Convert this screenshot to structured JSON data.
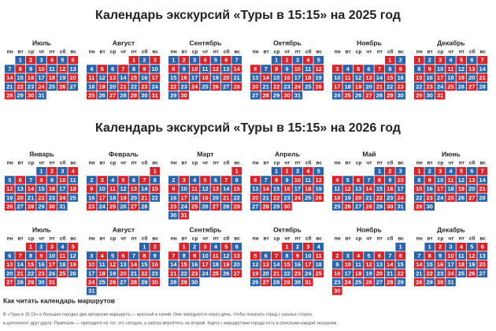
{
  "palette": {
    "red": "#d8232a",
    "blue": "#2b62ac"
  },
  "weekdays": [
    "пн",
    "вт",
    "ср",
    "чт",
    "пт",
    "сб",
    "вс"
  ],
  "sections": [
    {
      "title": "Календарь экскурсий «Туры в 15:15» на 2025 год",
      "months": [
        {
          "name": "Июль",
          "first_color": "blue",
          "days": [
            null,
            1,
            2,
            3,
            4,
            5,
            6,
            7,
            8,
            9,
            10,
            11,
            12,
            13,
            14,
            15,
            16,
            17,
            18,
            19,
            20,
            21,
            22,
            23,
            24,
            25,
            26,
            27,
            28,
            29,
            30,
            31
          ]
        },
        {
          "name": "Август",
          "first_color": "red",
          "days": [
            null,
            null,
            null,
            null,
            1,
            2,
            3,
            4,
            5,
            6,
            7,
            8,
            9,
            10,
            11,
            12,
            13,
            14,
            15,
            16,
            17,
            18,
            19,
            20,
            21,
            22,
            23,
            24,
            25,
            26,
            27,
            28,
            29,
            30,
            31
          ]
        },
        {
          "name": "Сентябрь",
          "first_color": "blue",
          "days": [
            1,
            2,
            3,
            4,
            5,
            6,
            7,
            8,
            9,
            10,
            11,
            12,
            13,
            14,
            15,
            16,
            17,
            18,
            19,
            20,
            21,
            22,
            23,
            24,
            25,
            26,
            27,
            28,
            29,
            30
          ]
        },
        {
          "name": "Октябрь",
          "first_color": "blue",
          "days": [
            null,
            null,
            1,
            2,
            3,
            4,
            5,
            6,
            7,
            8,
            9,
            10,
            11,
            12,
            13,
            14,
            15,
            16,
            17,
            18,
            19,
            20,
            21,
            22,
            23,
            24,
            25,
            26,
            27,
            28,
            29,
            30,
            31
          ]
        },
        {
          "name": "Ноябрь",
          "first_color": "red",
          "days": [
            null,
            null,
            null,
            null,
            null,
            1,
            2,
            3,
            4,
            5,
            6,
            7,
            8,
            9,
            10,
            11,
            12,
            13,
            14,
            15,
            16,
            17,
            18,
            19,
            20,
            21,
            22,
            23,
            24,
            25,
            26,
            27,
            28,
            29,
            30
          ]
        },
        {
          "name": "Декабрь",
          "first_color": "red",
          "days": [
            1,
            2,
            3,
            4,
            5,
            6,
            7,
            8,
            9,
            10,
            11,
            12,
            13,
            14,
            15,
            16,
            17,
            18,
            19,
            20,
            21,
            22,
            23,
            24,
            25,
            26,
            27,
            28,
            29,
            30,
            31
          ]
        }
      ]
    },
    {
      "title": "Календарь экскурсий «Туры в 15:15» на 2026 год",
      "months": [
        {
          "name": "Январь",
          "first_color": "blue",
          "days": [
            null,
            null,
            null,
            1,
            2,
            3,
            4,
            5,
            6,
            7,
            8,
            9,
            10,
            11,
            12,
            13,
            14,
            15,
            16,
            17,
            18,
            19,
            20,
            21,
            22,
            23,
            24,
            25,
            26,
            27,
            28,
            29,
            30,
            31
          ]
        },
        {
          "name": "Февраль",
          "first_color": "red",
          "days": [
            null,
            null,
            null,
            null,
            null,
            null,
            1,
            2,
            3,
            4,
            5,
            6,
            7,
            8,
            9,
            10,
            11,
            12,
            13,
            14,
            15,
            16,
            17,
            18,
            19,
            20,
            21,
            22,
            23,
            24,
            25,
            26,
            27,
            28
          ]
        },
        {
          "name": "Март",
          "first_color": "red",
          "days": [
            null,
            null,
            null,
            null,
            null,
            null,
            1,
            2,
            3,
            4,
            5,
            6,
            7,
            8,
            9,
            10,
            11,
            12,
            13,
            14,
            15,
            16,
            17,
            18,
            19,
            20,
            21,
            22,
            23,
            24,
            25,
            26,
            27,
            28,
            29,
            30,
            31
          ]
        },
        {
          "name": "Апрель",
          "first_color": "blue",
          "days": [
            null,
            null,
            1,
            2,
            3,
            4,
            5,
            6,
            7,
            8,
            9,
            10,
            11,
            12,
            13,
            14,
            15,
            16,
            17,
            18,
            19,
            20,
            21,
            22,
            23,
            24,
            25,
            26,
            27,
            28,
            29,
            30
          ]
        },
        {
          "name": "Май",
          "first_color": "blue",
          "days": [
            null,
            null,
            null,
            null,
            1,
            2,
            3,
            4,
            5,
            6,
            7,
            8,
            9,
            10,
            11,
            12,
            13,
            14,
            15,
            16,
            17,
            18,
            19,
            20,
            21,
            22,
            23,
            24,
            25,
            26,
            27,
            28,
            29,
            30,
            31
          ]
        },
        {
          "name": "Июнь",
          "first_color": "red",
          "days": [
            1,
            2,
            3,
            4,
            5,
            6,
            7,
            8,
            9,
            10,
            11,
            12,
            13,
            14,
            15,
            16,
            17,
            18,
            19,
            20,
            21,
            22,
            23,
            24,
            25,
            26,
            27,
            28,
            29,
            30
          ]
        },
        {
          "name": "Июль",
          "first_color": "red",
          "days": [
            null,
            null,
            1,
            2,
            3,
            4,
            5,
            6,
            7,
            8,
            9,
            10,
            11,
            12,
            13,
            14,
            15,
            16,
            17,
            18,
            19,
            20,
            21,
            22,
            23,
            24,
            25,
            26,
            27,
            28,
            29,
            30,
            31
          ]
        },
        {
          "name": "Август",
          "first_color": "blue",
          "days": [
            null,
            null,
            null,
            null,
            null,
            1,
            2,
            3,
            4,
            5,
            6,
            7,
            8,
            9,
            10,
            11,
            12,
            13,
            14,
            15,
            16,
            17,
            18,
            19,
            20,
            21,
            22,
            23,
            24,
            25,
            26,
            27,
            28,
            29,
            30,
            31
          ]
        },
        {
          "name": "Сентябрь",
          "first_color": "red",
          "days": [
            null,
            1,
            2,
            3,
            4,
            5,
            6,
            7,
            8,
            9,
            10,
            11,
            12,
            13,
            14,
            15,
            16,
            17,
            18,
            19,
            20,
            21,
            22,
            23,
            24,
            25,
            26,
            27,
            28,
            29,
            30
          ]
        },
        {
          "name": "Октябрь",
          "first_color": "red",
          "days": [
            null,
            null,
            null,
            1,
            2,
            3,
            4,
            5,
            6,
            7,
            8,
            9,
            10,
            11,
            12,
            13,
            14,
            15,
            16,
            17,
            18,
            19,
            20,
            21,
            22,
            23,
            24,
            25,
            26,
            27,
            28,
            29,
            30,
            31
          ]
        },
        {
          "name": "Ноябрь",
          "first_color": "blue",
          "days": [
            null,
            null,
            null,
            null,
            null,
            null,
            1,
            2,
            3,
            4,
            5,
            6,
            7,
            8,
            9,
            10,
            11,
            12,
            13,
            14,
            15,
            16,
            17,
            18,
            19,
            20,
            21,
            22,
            23,
            24,
            25,
            26,
            27,
            28,
            29,
            30
          ]
        },
        {
          "name": "Декабрь",
          "first_color": "blue",
          "days": [
            null,
            1,
            2,
            3,
            4,
            5,
            6,
            7,
            8,
            9,
            10,
            11,
            12,
            13,
            14,
            15,
            16,
            17,
            18,
            19,
            20,
            21,
            22,
            23,
            24,
            25,
            26,
            27,
            28,
            29,
            30,
            31
          ]
        }
      ]
    }
  ],
  "footer": {
    "heading": "Как читать календарь маршрутов",
    "lines": [
      "В «Туры в 15:15» в больших городах два авторских маршрута — красный и синий. Они чередуются через день, чтобы показать город с разных сторон,",
      "и дополняют друг друга. Приехали — приходите на тот, что сегодня, а завтра вернётесь на второй. Карта с маршрутами города есть в описании каждой экскурсии."
    ]
  }
}
